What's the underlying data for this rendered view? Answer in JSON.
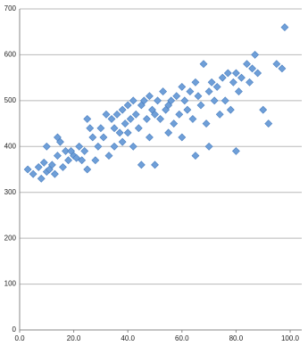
{
  "chart_data": {
    "type": "scatter",
    "x": [
      3,
      5,
      7,
      8,
      9,
      10,
      10,
      11,
      12,
      13,
      14,
      14,
      15,
      16,
      17,
      18,
      19,
      20,
      21,
      22,
      23,
      24,
      25,
      25,
      26,
      27,
      28,
      29,
      30,
      31,
      32,
      33,
      34,
      35,
      35,
      36,
      37,
      38,
      38,
      39,
      40,
      40,
      41,
      42,
      42,
      43,
      44,
      45,
      45,
      46,
      47,
      48,
      48,
      49,
      50,
      50,
      51,
      52,
      53,
      54,
      55,
      55,
      56,
      57,
      58,
      59,
      60,
      60,
      61,
      62,
      63,
      64,
      65,
      65,
      66,
      67,
      68,
      69,
      70,
      70,
      71,
      72,
      73,
      74,
      75,
      76,
      77,
      78,
      79,
      80,
      80,
      81,
      82,
      84,
      85,
      86,
      87,
      88,
      90,
      92,
      95,
      97,
      98
    ],
    "y": [
      350,
      340,
      355,
      330,
      365,
      345,
      400,
      350,
      360,
      340,
      420,
      380,
      410,
      355,
      390,
      370,
      390,
      380,
      375,
      400,
      370,
      390,
      460,
      350,
      440,
      420,
      370,
      400,
      440,
      420,
      470,
      380,
      460,
      440,
      400,
      470,
      430,
      480,
      410,
      450,
      490,
      430,
      460,
      500,
      400,
      470,
      440,
      490,
      360,
      500,
      460,
      510,
      420,
      480,
      470,
      360,
      500,
      460,
      520,
      480,
      490,
      430,
      500,
      450,
      510,
      470,
      530,
      420,
      500,
      480,
      520,
      460,
      540,
      380,
      510,
      490,
      580,
      450,
      520,
      400,
      540,
      500,
      530,
      470,
      550,
      500,
      560,
      480,
      540,
      560,
      390,
      520,
      550,
      580,
      540,
      570,
      600,
      560,
      480,
      450,
      580,
      570,
      660
    ],
    "color": "#6f9fd8",
    "xlim": [
      0,
      100
    ],
    "xticks": [
      {
        "value": 0,
        "label": "0.0"
      },
      {
        "value": 20,
        "label": "20.0"
      },
      {
        "value": 40,
        "label": "40.0"
      },
      {
        "value": 60,
        "label": "60.0"
      },
      {
        "value": 80,
        "label": "80.0"
      },
      {
        "value": 100,
        "label": "100.0"
      }
    ],
    "ylim": [
      0,
      700
    ],
    "yticks": [
      0,
      100,
      200,
      300,
      400,
      500,
      600,
      700
    ],
    "grid": true
  }
}
